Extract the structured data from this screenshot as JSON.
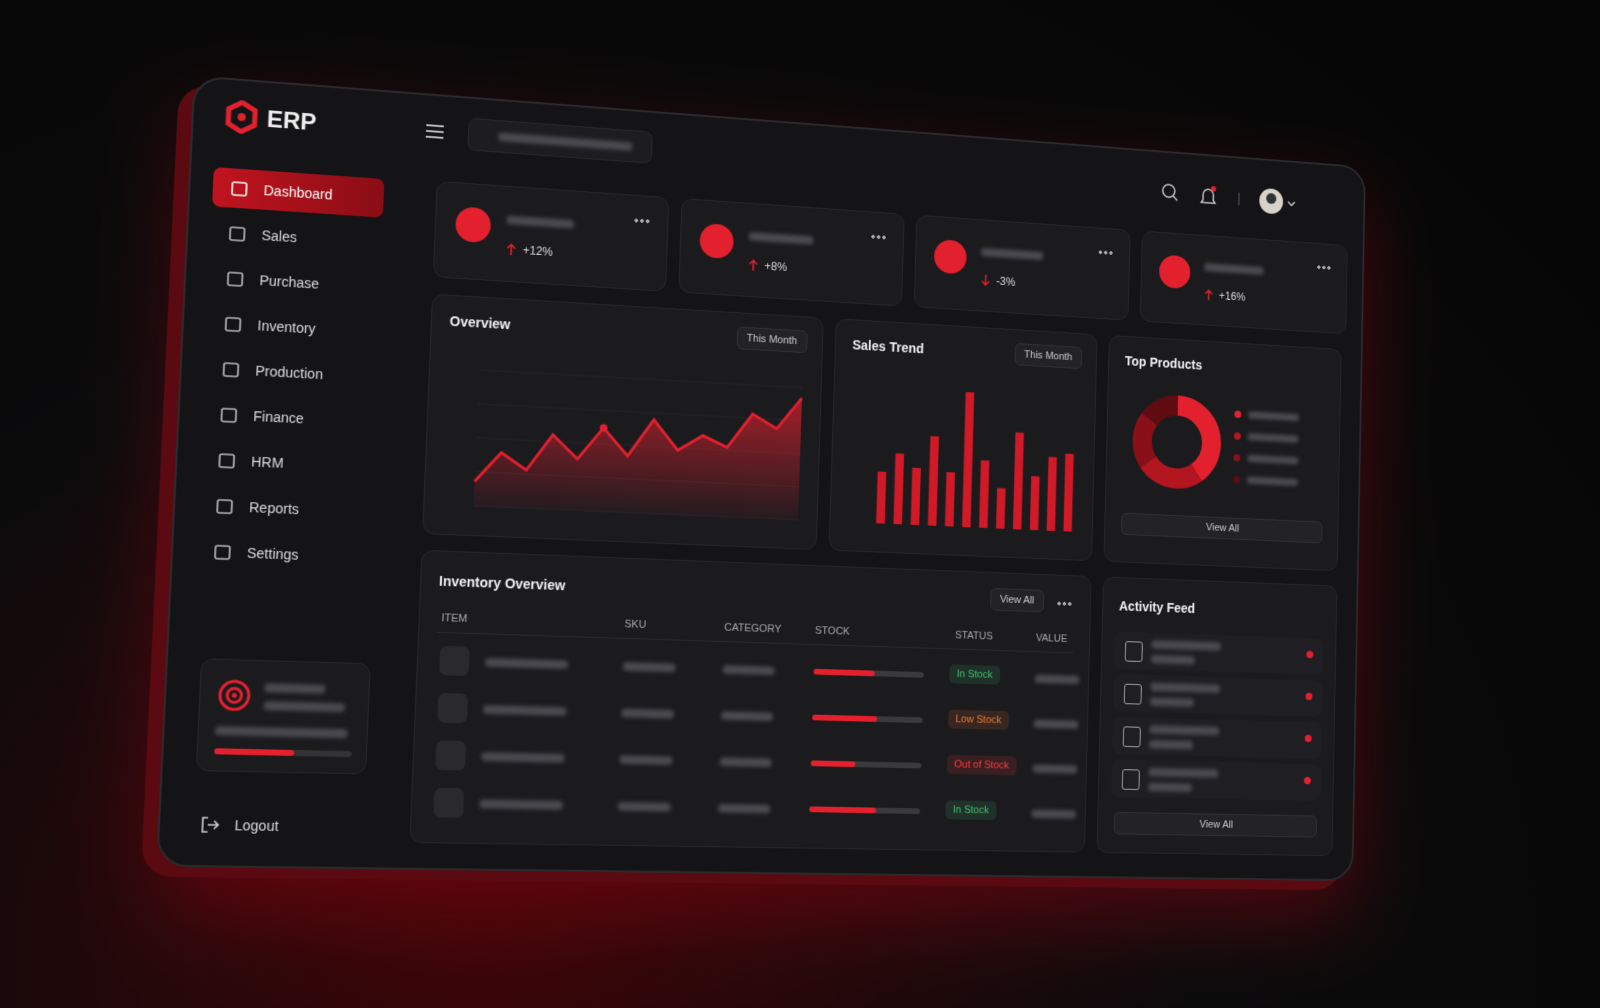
{
  "brand": "ERP",
  "nav": [
    {
      "label": "Dashboard",
      "active": true
    },
    {
      "label": "Sales"
    },
    {
      "label": "Purchase"
    },
    {
      "label": "Inventory"
    },
    {
      "label": "Production"
    },
    {
      "label": "Finance"
    },
    {
      "label": "HRM"
    },
    {
      "label": "Reports"
    },
    {
      "label": "Settings"
    }
  ],
  "logout": "Logout",
  "kpis": [
    {
      "change": "+12%",
      "trend": "up"
    },
    {
      "change": "+8%",
      "trend": "up"
    },
    {
      "change": "-3%",
      "trend": "down"
    },
    {
      "change": "+16%",
      "trend": "up"
    }
  ],
  "overview": {
    "title": "Overview",
    "period": "This Month",
    "ylim": [
      0,
      100
    ],
    "values": [
      18,
      40,
      28,
      55,
      38,
      62,
      42,
      70,
      48,
      60,
      52,
      78,
      68,
      92
    ],
    "color": "#e0202e"
  },
  "sales_trend": {
    "title": "Sales Trend",
    "period": "This Month",
    "ylim": [
      0,
      100
    ],
    "values": [
      38,
      52,
      42,
      66,
      40,
      100,
      50,
      30,
      72,
      40,
      55,
      58
    ],
    "color": "#d11a28"
  },
  "top_products": {
    "title": "Top Products",
    "action": "View All",
    "values": [
      40,
      25,
      20,
      15
    ],
    "colors": [
      "#e3202e",
      "#b3161f",
      "#8a1018",
      "#5e0b11"
    ]
  },
  "inventory": {
    "title": "Inventory Overview",
    "action": "View All",
    "columns": [
      "ITEM",
      "SKU",
      "CATEGORY",
      "STOCK",
      "STATUS",
      "VALUE"
    ],
    "stock_lim": [
      0,
      100
    ],
    "rows": [
      {
        "stock": 55,
        "status": "In Stock",
        "status_color": "#3fc26d"
      },
      {
        "stock": 58,
        "status": "Low Stock",
        "status_color": "#f07a2a"
      },
      {
        "stock": 40,
        "status": "Out of Stock",
        "status_color": "#ff3b3b"
      },
      {
        "stock": 60,
        "status": "In Stock",
        "status_color": "#3fc26d"
      }
    ]
  },
  "activity": {
    "title": "Activity Feed",
    "action": "View All"
  }
}
